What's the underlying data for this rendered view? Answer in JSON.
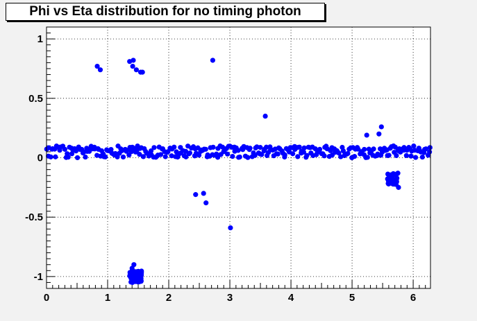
{
  "title": "Phi vs Eta distribution for no timing photon",
  "colors": {
    "background": "#f2f2f2",
    "frame": "#ffffff",
    "marker": "#0000ff",
    "grid": "#000000"
  },
  "chart_data": {
    "type": "scatter",
    "title": "Phi vs Eta distribution for no timing photon",
    "xlabel": "",
    "ylabel": "",
    "xlim": [
      0,
      6.283
    ],
    "ylim": [
      -1.1,
      1.1
    ],
    "grid": true,
    "legend": "none",
    "x_ticks": [
      0,
      1,
      2,
      3,
      4,
      5,
      6
    ],
    "x_tick_labels": [
      "0",
      "1",
      "2",
      "3",
      "4",
      "5",
      "6"
    ],
    "y_ticks": [
      -1,
      -0.5,
      0,
      0.5,
      1
    ],
    "y_tick_labels": [
      "-1",
      "-0.5",
      "0",
      "0.5",
      "1"
    ],
    "clusters": [
      {
        "x": 0.83,
        "y": 0.77
      },
      {
        "x": 0.88,
        "y": 0.74
      },
      {
        "x": 1.36,
        "y": 0.81
      },
      {
        "x": 1.42,
        "y": 0.82
      },
      {
        "x": 1.41,
        "y": 0.77
      },
      {
        "x": 1.47,
        "y": 0.74
      },
      {
        "x": 1.54,
        "y": 0.72
      },
      {
        "x": 1.57,
        "y": 0.72
      },
      {
        "x": 2.72,
        "y": 0.82
      },
      {
        "x": 3.58,
        "y": 0.35
      },
      {
        "x": 5.24,
        "y": 0.19
      },
      {
        "x": 5.44,
        "y": 0.2
      },
      {
        "x": 5.48,
        "y": 0.26
      },
      {
        "x": 2.44,
        "y": -0.31
      },
      {
        "x": 2.57,
        "y": -0.3
      },
      {
        "x": 2.61,
        "y": -0.38
      },
      {
        "x": 3.01,
        "y": -0.59
      }
    ],
    "band": {
      "x_range": [
        0.0,
        6.28
      ],
      "y_values": [
        0.03,
        0.07,
        0.09,
        0.05,
        0.01,
        0.08
      ]
    },
    "blobs": [
      {
        "x_center": 1.46,
        "y_center": -1.0,
        "x_spread": 0.1,
        "y_spread": 0.05,
        "count": 70
      },
      {
        "x_center": 5.66,
        "y_center": -0.18,
        "x_spread": 0.08,
        "y_spread": 0.05,
        "count": 35
      }
    ],
    "blob_extras": [
      {
        "x": 1.43,
        "y": -0.9
      },
      {
        "x": 1.4,
        "y": -0.93
      },
      {
        "x": 5.75,
        "y": -0.13
      },
      {
        "x": 5.76,
        "y": -0.25
      }
    ]
  }
}
